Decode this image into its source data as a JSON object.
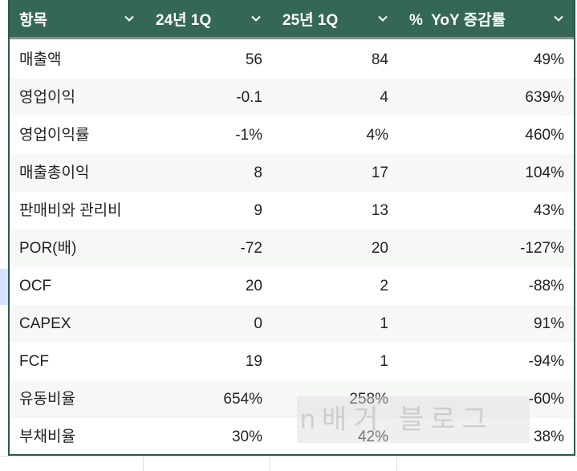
{
  "table": {
    "headers": [
      {
        "label": "항목"
      },
      {
        "label": "24년 1Q"
      },
      {
        "label": "25년 1Q"
      },
      {
        "label": "%  YoY 증감률"
      }
    ],
    "rows": [
      {
        "item": "매출액",
        "q24": "56",
        "q25": "84",
        "yoy": "49%"
      },
      {
        "item": "영업이익",
        "q24": "-0.1",
        "q25": "4",
        "yoy": "639%"
      },
      {
        "item": "영업이익률",
        "q24": "-1%",
        "q25": "4%",
        "yoy": "460%"
      },
      {
        "item": "매출총이익",
        "q24": "8",
        "q25": "17",
        "yoy": "104%"
      },
      {
        "item": "판매비와 관리비",
        "q24": "9",
        "q25": "13",
        "yoy": "43%"
      },
      {
        "item": "POR(배)",
        "q24": "-72",
        "q25": "20",
        "yoy": "-127%"
      },
      {
        "item": "OCF",
        "q24": "20",
        "q25": "2",
        "yoy": "-88%"
      },
      {
        "item": "CAPEX",
        "q24": "0",
        "q25": "1",
        "yoy": "91%"
      },
      {
        "item": "FCF",
        "q24": "19",
        "q25": "1",
        "yoy": "-94%"
      },
      {
        "item": "유동비율",
        "q24": "654%",
        "q25": "258%",
        "yoy": "-60%"
      },
      {
        "item": "부채비율",
        "q24": "30%",
        "q25": "42%",
        "yoy": "38%"
      }
    ]
  },
  "watermark": "n배거 블로그",
  "colors": {
    "header_bg": "#356854",
    "border": "#2e5a4a",
    "alt_row": "#f6f8f6",
    "selection": "#d3e3fd"
  },
  "icons": {
    "column_filter": "chevron-down-icon"
  }
}
